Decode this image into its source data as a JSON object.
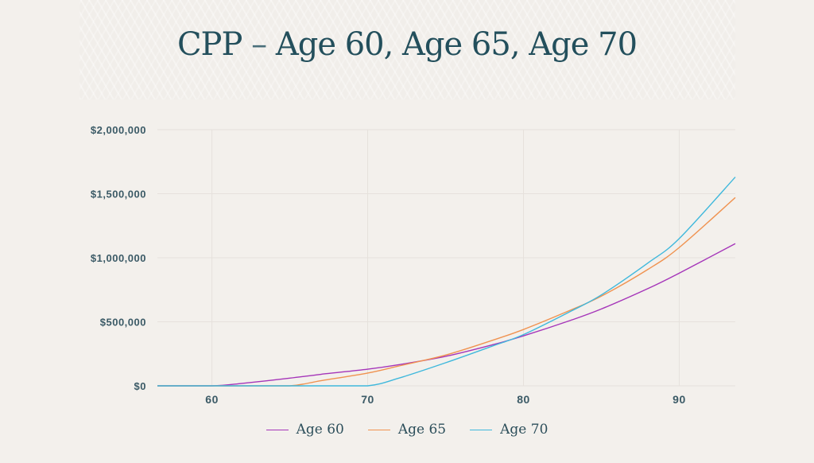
{
  "title": {
    "main": "CPP",
    "dash": "–",
    "rest": "Age 60, Age 65, Age 70"
  },
  "legend": [
    {
      "label": "Age 60",
      "color": "#a535b9"
    },
    {
      "label": "Age 65",
      "color": "#f09250"
    },
    {
      "label": "Age 70",
      "color": "#3fb8dc"
    }
  ],
  "chart_data": {
    "type": "line",
    "title": "CPP – Age 60, Age 65, Age 70",
    "xlabel": "",
    "ylabel": "",
    "xlim": [
      56.5,
      93.6
    ],
    "ylim": [
      0,
      2000000
    ],
    "x_ticks": [
      "60",
      "70",
      "80",
      "90"
    ],
    "y_ticks": [
      "$0",
      "$500,000",
      "$1,000,000",
      "$1,500,000",
      "$2,000,000"
    ],
    "grid": true,
    "legend_position": "bottom",
    "x": [
      56.5,
      60,
      62,
      65,
      67,
      70,
      72,
      75,
      78,
      80,
      83,
      85,
      88,
      90,
      93.6
    ],
    "series": [
      {
        "name": "Age 60",
        "color": "#a535b9",
        "values": [
          0,
          0,
          20000,
          60000,
          90000,
          130000,
          165000,
          230000,
          320000,
          390000,
          510000,
          600000,
          760000,
          880000,
          1110000
        ]
      },
      {
        "name": "Age 65",
        "color": "#f09250",
        "values": [
          0,
          0,
          0,
          0,
          40000,
          100000,
          155000,
          240000,
          355000,
          440000,
          590000,
          700000,
          910000,
          1080000,
          1470000
        ]
      },
      {
        "name": "Age 70",
        "color": "#3fb8dc",
        "values": [
          0,
          0,
          0,
          0,
          0,
          0,
          60000,
          180000,
          310000,
          400000,
          580000,
          710000,
          960000,
          1150000,
          1630000
        ]
      }
    ]
  }
}
